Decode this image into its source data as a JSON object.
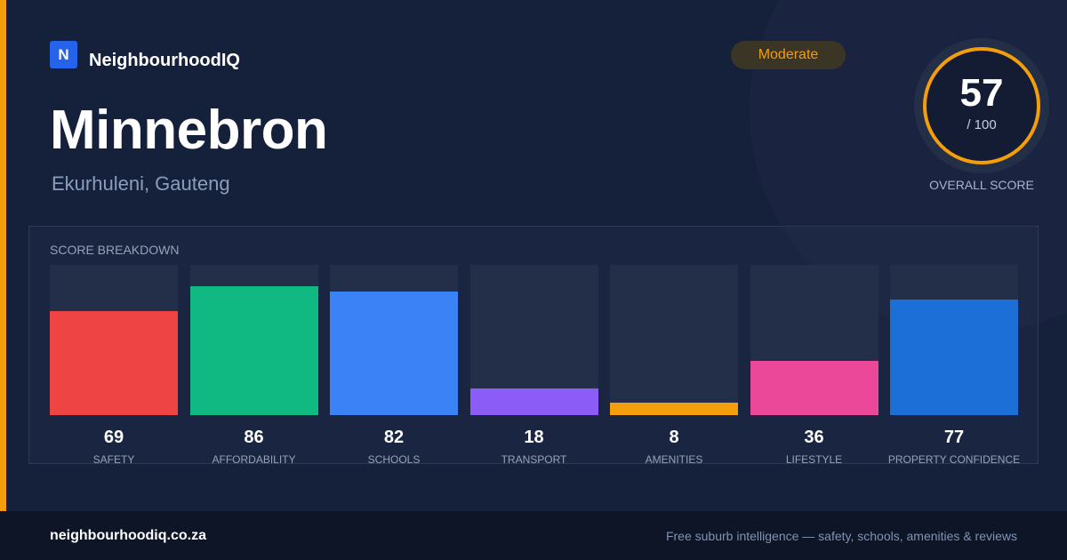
{
  "brand": {
    "logo_letter": "N",
    "name": "NeighbourhoodIQ",
    "logo_color": "#2563eb"
  },
  "suburb": {
    "name": "Minnebron",
    "location": "Ekurhuleni, Gauteng"
  },
  "badge": {
    "label": "Moderate",
    "color": "#f59e0b"
  },
  "overall": {
    "score": "57",
    "max": "/ 100",
    "caption": "OVERALL SCORE",
    "ring_color": "#f59e0b"
  },
  "breakdown": {
    "title": "SCORE BREAKDOWN",
    "max_value": 100,
    "categories": [
      {
        "label": "SAFETY",
        "value": 69,
        "color": "#ef4444"
      },
      {
        "label": "AFFORDABILITY",
        "value": 86,
        "color": "#10b981"
      },
      {
        "label": "SCHOOLS",
        "value": 82,
        "color": "#3b82f6"
      },
      {
        "label": "TRANSPORT",
        "value": 18,
        "color": "#8b5cf6"
      },
      {
        "label": "AMENITIES",
        "value": 8,
        "color": "#f59e0b"
      },
      {
        "label": "LIFESTYLE",
        "value": 36,
        "color": "#ec4899"
      },
      {
        "label": "PROPERTY CONFIDENCE",
        "value": 77,
        "color": "#1d6fd8"
      }
    ]
  },
  "footer": {
    "url": "neighbourhoodiq.co.za",
    "tagline": "Free suburb intelligence — safety, schools, amenities & reviews"
  },
  "colors": {
    "background": "#15213a",
    "accent": "#f59e0b",
    "footer_background": "#0d1526"
  }
}
